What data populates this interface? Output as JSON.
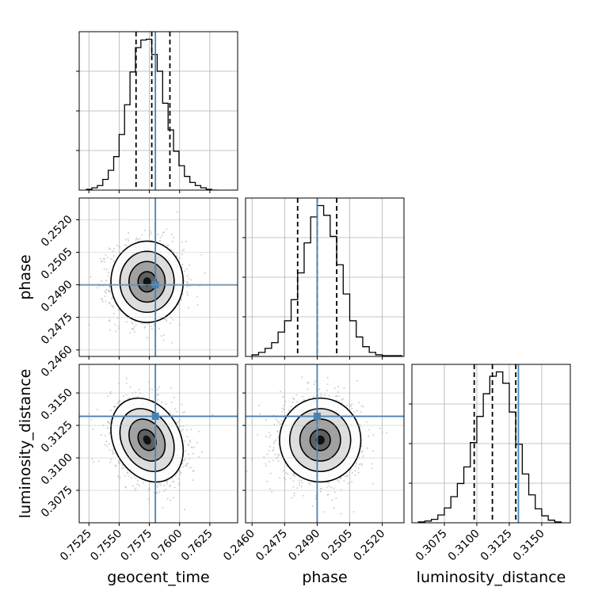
{
  "chart_data": {
    "type": "scatter",
    "parameters": [
      "geocent_time",
      "phase",
      "luminosity_distance"
    ],
    "axis_labels": {
      "geocent_time": "geocent_time",
      "phase": "phase",
      "luminosity_distance": "luminosity_distance"
    },
    "ranges": {
      "geocent_time": [
        0.7517,
        0.7648
      ],
      "phase": [
        0.2457,
        0.253
      ],
      "luminosity_distance": [
        0.305,
        0.3172
      ]
    },
    "ticks": {
      "geocent_time": [
        "0.7525",
        "0.7550",
        "0.7575",
        "0.7600",
        "0.7625"
      ],
      "phase": [
        "0.2460",
        "0.2475",
        "0.2490",
        "0.2505",
        "0.2520"
      ],
      "luminosity_distance": [
        "0.3075",
        "0.3100",
        "0.3125",
        "0.3150"
      ]
    },
    "truths": {
      "geocent_time": 0.758,
      "phase": 0.249,
      "luminosity_distance": 0.3132
    },
    "quantiles": {
      "geocent_time": [
        0.7564,
        0.7577,
        0.7592
      ],
      "phase": [
        0.2481,
        0.249,
        0.2499
      ],
      "luminosity_distance": [
        0.3098,
        0.3112,
        0.313
      ]
    },
    "histograms": {
      "geocent_time": {
        "edges": [
          0.7523,
          0.75275,
          0.7532,
          0.75365,
          0.7541,
          0.75455,
          0.755,
          0.75545,
          0.7559,
          0.75635,
          0.7568,
          0.75725,
          0.7577,
          0.75815,
          0.7586,
          0.75905,
          0.7595,
          0.75995,
          0.7604,
          0.76085,
          0.7613,
          0.76175,
          0.7622,
          0.76265,
          0.7631
        ],
        "counts": [
          1,
          3,
          6,
          14,
          26,
          44,
          73,
          112,
          155,
          187,
          197,
          198,
          178,
          156,
          114,
          79,
          51,
          32,
          18,
          10,
          6,
          3,
          1,
          0
        ]
      },
      "phase": {
        "edges": [
          0.246,
          0.2463,
          0.2466,
          0.2469,
          0.2472,
          0.2475,
          0.2478,
          0.2481,
          0.2484,
          0.2487,
          0.249,
          0.2493,
          0.2496,
          0.2499,
          0.2502,
          0.2505,
          0.2508,
          0.2511,
          0.2514,
          0.2517,
          0.252,
          0.2523,
          0.2526,
          0.2529
        ],
        "counts": [
          2,
          5,
          10,
          17,
          30,
          44,
          70,
          103,
          140,
          172,
          186,
          174,
          148,
          113,
          77,
          44,
          24,
          12,
          5,
          2,
          1,
          1,
          1
        ]
      },
      "luminosity_distance": {
        "edges": [
          0.3055,
          0.306,
          0.3065,
          0.307,
          0.3075,
          0.308,
          0.3085,
          0.309,
          0.3095,
          0.31,
          0.3105,
          0.311,
          0.3115,
          0.312,
          0.3125,
          0.313,
          0.3135,
          0.314,
          0.3145,
          0.315,
          0.3155,
          0.316,
          0.3165
        ],
        "counts": [
          1,
          2,
          4,
          9,
          17,
          30,
          45,
          64,
          92,
          122,
          148,
          168,
          173,
          160,
          127,
          90,
          56,
          32,
          16,
          8,
          3,
          1
        ]
      }
    },
    "correlations": {
      "phase|geocent_time": 0.0,
      "luminosity_distance|geocent_time": -0.25,
      "luminosity_distance|phase": 0.0
    },
    "contour_levels_sigma": [
      0.5,
      1.0,
      1.5,
      2.0
    ],
    "colors": {
      "histogram": "#000000",
      "truth": "#4682b4",
      "density": "#000000",
      "grid": "#b0b0b0",
      "points": "#a8a8a8"
    },
    "grid": true
  }
}
